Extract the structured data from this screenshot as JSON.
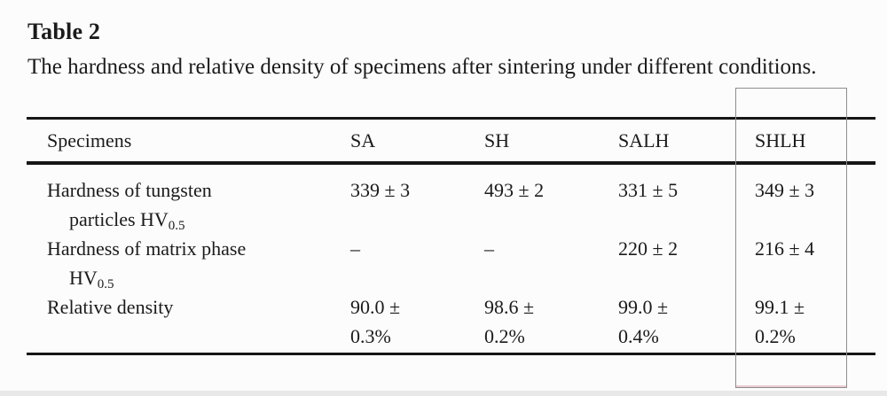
{
  "document": {
    "table_label": "Table 2",
    "caption": "The hardness and relative density of specimens after sintering under different conditions."
  },
  "table": {
    "headers": [
      "Specimens",
      "SA",
      "SH",
      "SALH",
      "SHLH"
    ],
    "rows": [
      {
        "label_lines": [
          {
            "text": "Hardness of tungsten"
          },
          {
            "text": "particles HV",
            "sub": "0.5"
          }
        ],
        "cells": [
          [
            "339 ± 3"
          ],
          [
            "493 ± 2"
          ],
          [
            "331 ± 5"
          ],
          [
            "349 ± 3"
          ]
        ]
      },
      {
        "label_lines": [
          {
            "text": "Hardness of matrix phase"
          },
          {
            "text": "HV",
            "sub": "0.5"
          }
        ],
        "cells": [
          [
            "–"
          ],
          [
            "–"
          ],
          [
            "220 ± 2"
          ],
          [
            "216 ± 4"
          ]
        ]
      },
      {
        "label_lines": [
          {
            "text": "Relative density"
          }
        ],
        "cells": [
          [
            "90.0 ±",
            "0.3%"
          ],
          [
            "98.6 ±",
            "0.2%"
          ],
          [
            "99.0 ±",
            "0.4%"
          ],
          [
            "99.1 ±",
            "0.2%"
          ]
        ]
      }
    ]
  },
  "annotation": {
    "highlighted_column": "SHLH",
    "box_border_color": "#8e8e8e",
    "box_bottom_tint": "#dda4ad"
  },
  "colors": {
    "background": "#fcfcfc",
    "text": "#1b1b1b",
    "rule": "#161616",
    "bottom_band": "#e8e8e8"
  },
  "chart_data": {
    "type": "table",
    "title": "The hardness and relative density of specimens after sintering under different conditions.",
    "categories": [
      "SA",
      "SH",
      "SALH",
      "SHLH"
    ],
    "series": [
      {
        "name": "Hardness of tungsten particles HV0.5",
        "values": [
          "339 ± 3",
          "493 ± 2",
          "331 ± 5",
          "349 ± 3"
        ]
      },
      {
        "name": "Hardness of matrix phase HV0.5",
        "values": [
          "–",
          "–",
          "220 ± 2",
          "216 ± 4"
        ]
      },
      {
        "name": "Relative density",
        "values": [
          "90.0 ± 0.3%",
          "98.6 ± 0.2%",
          "99.0 ± 0.4%",
          "99.1 ± 0.2%"
        ]
      }
    ]
  }
}
